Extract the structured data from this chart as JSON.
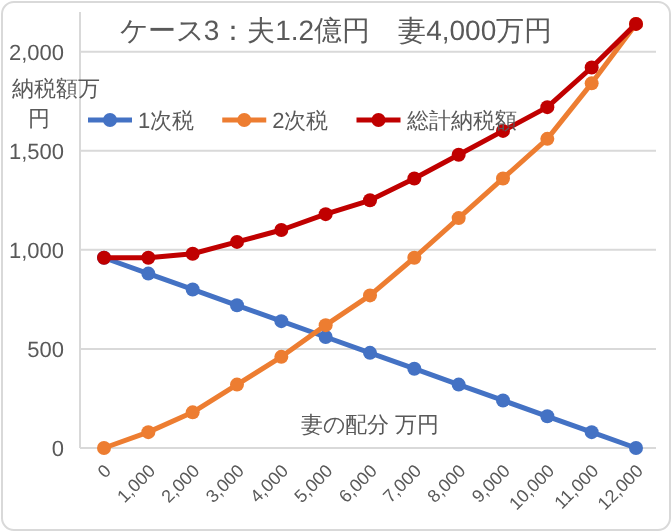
{
  "chart_data": {
    "type": "line",
    "title": "ケース3：夫1.2億円　妻4,000万円",
    "ylabel": "納税額万円",
    "xlabel": "妻の配分 万円",
    "categories": [
      "0",
      "1,000",
      "2,000",
      "3,000",
      "4,000",
      "5,000",
      "6,000",
      "7,000",
      "8,000",
      "9,000",
      "10,000",
      "11,000",
      "12,000"
    ],
    "series": [
      {
        "name": "1次税",
        "color": "#4472c4",
        "values": [
          960,
          880,
          800,
          720,
          640,
          560,
          480,
          400,
          320,
          240,
          160,
          80,
          0
        ]
      },
      {
        "name": "2次税",
        "color": "#ed7d31",
        "values": [
          0,
          80,
          180,
          320,
          460,
          620,
          770,
          960,
          1160,
          1360,
          1560,
          1840,
          2140
        ]
      },
      {
        "name": "総計納税額",
        "color": "#c00000",
        "values": [
          960,
          960,
          980,
          1040,
          1100,
          1180,
          1250,
          1360,
          1480,
          1600,
          1720,
          1920,
          2140
        ]
      }
    ],
    "ylim": [
      0,
      2200
    ],
    "yticks": [
      0,
      500,
      {
        "value": 1000,
        "label": "1,000"
      },
      {
        "value": 1500,
        "label": "1,500"
      },
      {
        "value": 2000,
        "label": "2,000"
      }
    ],
    "grid": "y",
    "legend": "top",
    "marker": "circle"
  }
}
